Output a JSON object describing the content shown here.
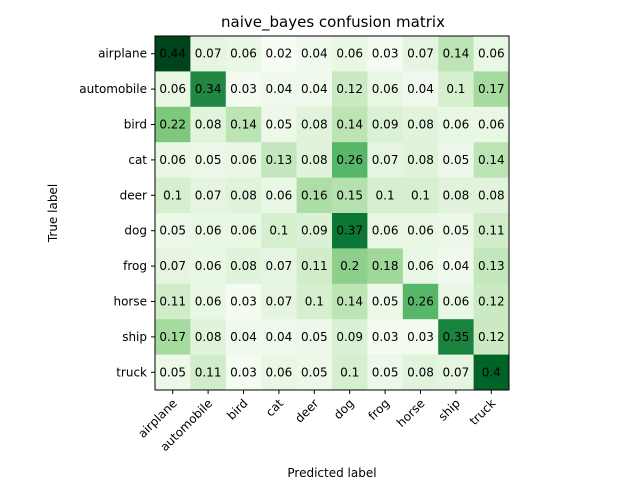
{
  "chart_data": {
    "type": "heatmap",
    "title": "naive_bayes confusion matrix",
    "xlabel": "Predicted label",
    "ylabel": "True label",
    "x_categories": [
      "airplane",
      "automobile",
      "bird",
      "cat",
      "deer",
      "dog",
      "frog",
      "horse",
      "ship",
      "truck"
    ],
    "y_categories": [
      "airplane",
      "automobile",
      "bird",
      "cat",
      "deer",
      "dog",
      "frog",
      "horse",
      "ship",
      "truck"
    ],
    "values": [
      [
        0.44,
        0.07,
        0.06,
        0.02,
        0.04,
        0.06,
        0.03,
        0.07,
        0.14,
        0.06
      ],
      [
        0.06,
        0.34,
        0.03,
        0.04,
        0.04,
        0.12,
        0.06,
        0.04,
        0.1,
        0.17
      ],
      [
        0.22,
        0.08,
        0.14,
        0.05,
        0.08,
        0.14,
        0.09,
        0.08,
        0.06,
        0.06
      ],
      [
        0.06,
        0.05,
        0.06,
        0.13,
        0.08,
        0.26,
        0.07,
        0.08,
        0.05,
        0.14
      ],
      [
        0.1,
        0.07,
        0.08,
        0.06,
        0.16,
        0.15,
        0.1,
        0.1,
        0.08,
        0.08
      ],
      [
        0.05,
        0.06,
        0.06,
        0.1,
        0.09,
        0.37,
        0.06,
        0.06,
        0.05,
        0.11
      ],
      [
        0.07,
        0.06,
        0.08,
        0.07,
        0.11,
        0.2,
        0.18,
        0.06,
        0.04,
        0.13
      ],
      [
        0.11,
        0.06,
        0.03,
        0.07,
        0.1,
        0.14,
        0.05,
        0.26,
        0.06,
        0.12
      ],
      [
        0.17,
        0.08,
        0.04,
        0.04,
        0.05,
        0.09,
        0.03,
        0.03,
        0.35,
        0.12
      ],
      [
        0.05,
        0.11,
        0.03,
        0.06,
        0.05,
        0.1,
        0.05,
        0.08,
        0.07,
        0.4
      ]
    ],
    "colormap": "Greens",
    "value_range": [
      0.02,
      0.44
    ],
    "grid": false
  }
}
